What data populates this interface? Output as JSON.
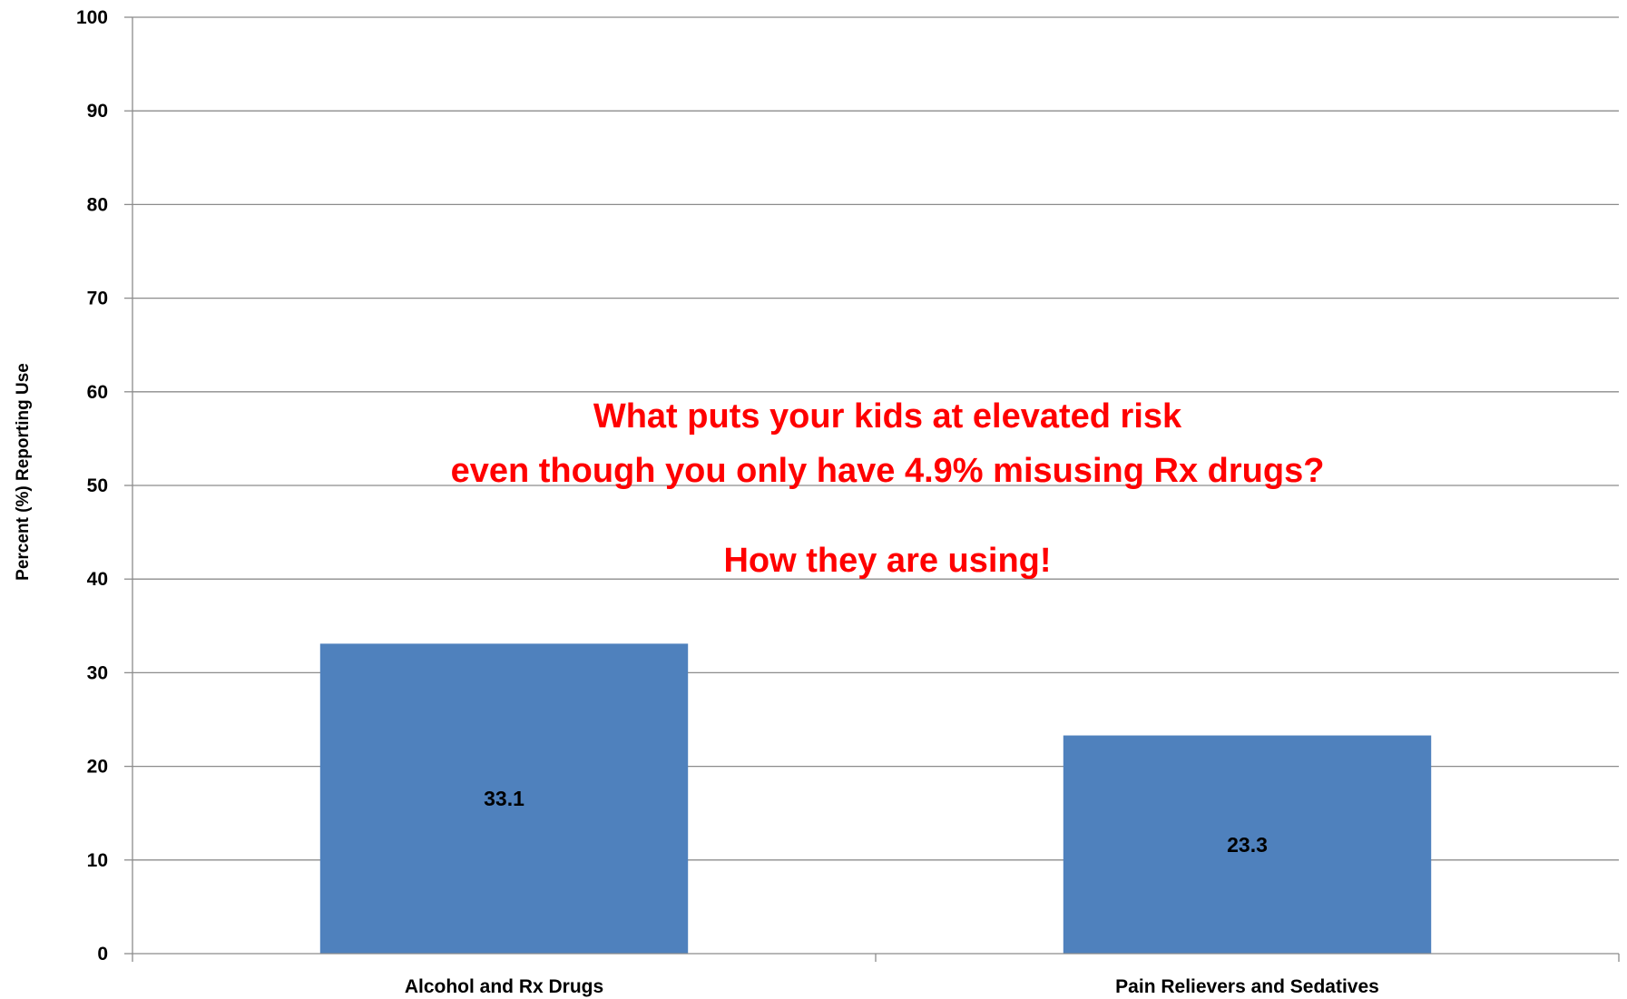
{
  "chart_data": {
    "type": "bar",
    "categories": [
      "Alcohol and Rx Drugs",
      "Pain Relievers and Sedatives"
    ],
    "values": [
      33.1,
      23.3
    ],
    "value_labels": [
      "33.1",
      "23.3"
    ],
    "ylabel": "Percent (%) Reporting Use",
    "ylim": [
      0,
      100
    ],
    "yticks": [
      "0",
      "10",
      "20",
      "30",
      "40",
      "50",
      "60",
      "70",
      "80",
      "90",
      "100"
    ],
    "grid": true,
    "bar_color": "#4F81BD",
    "annotations": [
      "What puts your kids at elevated risk",
      "even though you only have 4.9% misusing Rx drugs?",
      "How they are using!"
    ],
    "annotation_color": "#FF0000"
  }
}
